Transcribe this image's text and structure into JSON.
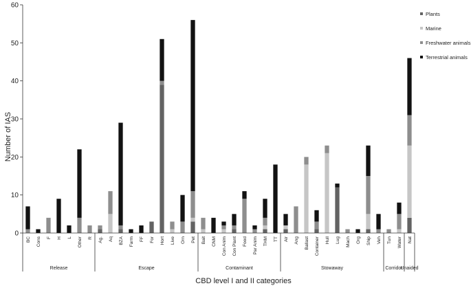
{
  "chart_data": {
    "type": "bar",
    "stacked": true,
    "ylabel": "Number of IAS",
    "xlabel": "CBD level  I and II categories",
    "ylim": [
      0,
      60
    ],
    "yticks": [
      0,
      10,
      20,
      30,
      40,
      50,
      60
    ],
    "grid": false,
    "legend_position": "right",
    "colors": {
      "Plants": "#636363",
      "Marine": "#c6c6c6",
      "Freshwater animals": "#8e8e8e",
      "Terrestrial animals": "#121212"
    },
    "categories": [
      "BC",
      "Cons",
      "F",
      "H",
      "L",
      "Other",
      "R",
      "Ag.",
      "Aq",
      "BZA",
      "Farm",
      "FF",
      "For",
      "Hort",
      "Live",
      "Orn",
      "Pet",
      "Bait",
      "CNM",
      "Con Anim",
      "Con Plant",
      "Food",
      "Par Anim",
      "THM",
      "TT",
      "Air",
      "Ang",
      "Ballast",
      "Container",
      "Hull",
      "Lug",
      "Mach",
      "Org",
      "Ship",
      "Veh",
      "Tun",
      "Water",
      "Nat"
    ],
    "groups": [
      {
        "name": "Release",
        "start": 0,
        "end": 6
      },
      {
        "name": "Escape",
        "start": 7,
        "end": 16
      },
      {
        "name": "Contaminant",
        "start": 17,
        "end": 24
      },
      {
        "name": "Stowaway",
        "start": 25,
        "end": 34
      },
      {
        "name": "Corridor",
        "start": 35,
        "end": 36
      },
      {
        "name": "Unaided",
        "start": 37,
        "end": 37
      }
    ],
    "series": [
      {
        "name": "Plants",
        "values": [
          0,
          0,
          0,
          0,
          0,
          0,
          0,
          1,
          0,
          1,
          0,
          0,
          3,
          39,
          0,
          0,
          3,
          0,
          0,
          0,
          1,
          0,
          0,
          1,
          0,
          1,
          0,
          0,
          1,
          0,
          12,
          0,
          0,
          1,
          0,
          0,
          0,
          4
        ]
      },
      {
        "name": "Marine",
        "values": [
          0,
          0,
          0,
          0,
          0,
          0,
          0,
          0,
          5,
          0,
          0,
          0,
          0,
          0,
          1,
          0,
          1,
          1,
          0,
          1,
          0,
          0,
          0,
          1,
          0,
          1,
          0,
          18,
          0,
          21,
          0,
          0,
          0,
          4,
          0,
          0,
          1,
          19
        ]
      },
      {
        "name": "Freshwater animals",
        "values": [
          1,
          0,
          4,
          0,
          0,
          4,
          2,
          1,
          6,
          1,
          0,
          0,
          0,
          1,
          2,
          3,
          7,
          3,
          0,
          1,
          1,
          9,
          1,
          2,
          0,
          0,
          7,
          2,
          2,
          2,
          0,
          1,
          0,
          10,
          1,
          1,
          4,
          8
        ]
      },
      {
        "name": "Terrestrial animals",
        "values": [
          6,
          1,
          0,
          9,
          2,
          18,
          0,
          0,
          0,
          27,
          1,
          2,
          0,
          11,
          0,
          7,
          45,
          0,
          4,
          1,
          3,
          2,
          1,
          5,
          18,
          3,
          0,
          0,
          3,
          0,
          1,
          0,
          1,
          8,
          4,
          0,
          3,
          15
        ]
      }
    ]
  }
}
